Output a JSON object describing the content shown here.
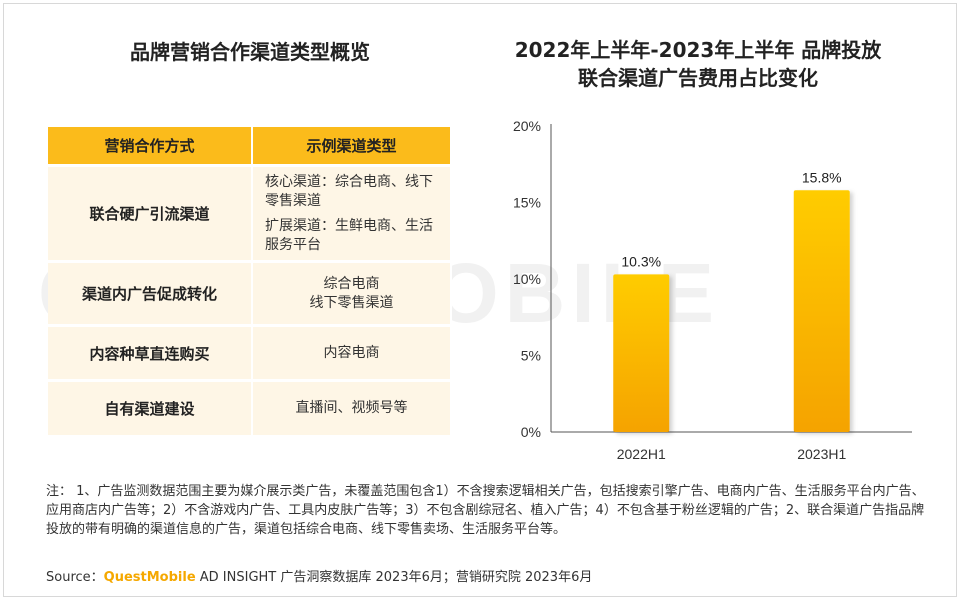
{
  "left_title": "品牌营销合作渠道类型概览",
  "right_title": [
    "2022年上半年-2023年上半年 品牌投放",
    "联合渠道广告费用占比变化"
  ],
  "watermark": "QUESTMOBILE",
  "table": {
    "headers": [
      "营销合作方式",
      "示例渠道类型"
    ],
    "rows": [
      {
        "method": "联合硬广引流渠道",
        "examples": [
          "核心渠道：综合电商、线下零售渠道",
          "扩展渠道：生鲜电商、生活服务平台"
        ]
      },
      {
        "method": "渠道内广告促成转化",
        "examples": [
          "综合电商",
          "线下零售渠道"
        ]
      },
      {
        "method": "内容种草直连购买",
        "examples": [
          "内容电商"
        ]
      },
      {
        "method": "自有渠道建设",
        "examples": [
          "直播间、视频号等"
        ]
      }
    ]
  },
  "chart_data": {
    "type": "bar",
    "title": "2022年上半年-2023年上半年 品牌投放联合渠道广告费用占比变化",
    "categories": [
      "2022H1",
      "2023H1"
    ],
    "values": [
      10.3,
      15.8
    ],
    "value_labels": [
      "10.3%",
      "15.8%"
    ],
    "ylim": [
      0,
      20
    ],
    "yticks": [
      0,
      5,
      10,
      15,
      20
    ],
    "ytick_labels": [
      "0%",
      "5%",
      "10%",
      "15%",
      "20%"
    ],
    "xlabel": "",
    "ylabel": "",
    "grid": false,
    "bar_color_top": "#ffcc00",
    "bar_color_bottom": "#f5a300"
  },
  "note": "注：  1、广告监测数据范围主要为媒介展示类广告，未覆盖范围包含1）不含搜索逻辑相关广告，包括搜索引擎广告、电商内广告、生活服务平台内广告、应用商店内广告等；2）不含游戏内广告、工具内皮肤广告等；3）不包含剧综冠名、植入广告；4）不包含基于粉丝逻辑的广告；2、联合渠道广告指品牌投放的带有明确的渠道信息的广告，渠道包括综合电商、线下零售卖场、生活服务平台等。",
  "source": {
    "prefix": "Source：",
    "brand": "QuestMobile",
    "rest": " AD INSIGHT 广告洞察数据库 2023年6月；营销研究院 2023年6月"
  }
}
